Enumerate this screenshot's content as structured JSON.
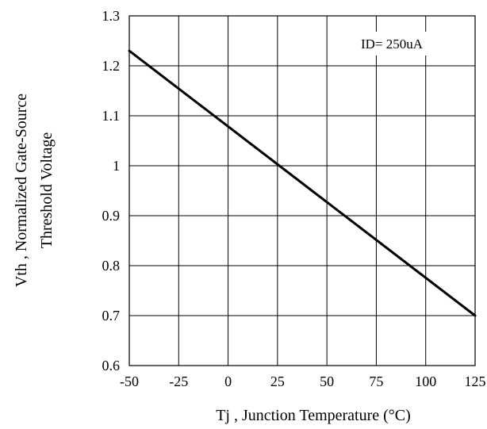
{
  "chart_data": {
    "type": "line",
    "title": "",
    "xlabel": "Tj , Junction Temperature (°C)",
    "ylabel_line1": "Vth , Normalized Gate-Source",
    "ylabel_line2": "Threshold Voltage",
    "xlim": [
      -50,
      125
    ],
    "ylim": [
      0.6,
      1.3
    ],
    "x_ticks": [
      "-50",
      "-25",
      "0",
      "25",
      "50",
      "75",
      "100",
      "125"
    ],
    "y_ticks": [
      "1.3",
      "1.2",
      "1.1",
      "1",
      "0.9",
      "0.8",
      "0.7",
      "0.6"
    ],
    "grid": true,
    "annotation": "ID= 250uA",
    "series": [
      {
        "x": [
          -50,
          125
        ],
        "y": [
          1.23,
          0.7
        ]
      }
    ]
  }
}
